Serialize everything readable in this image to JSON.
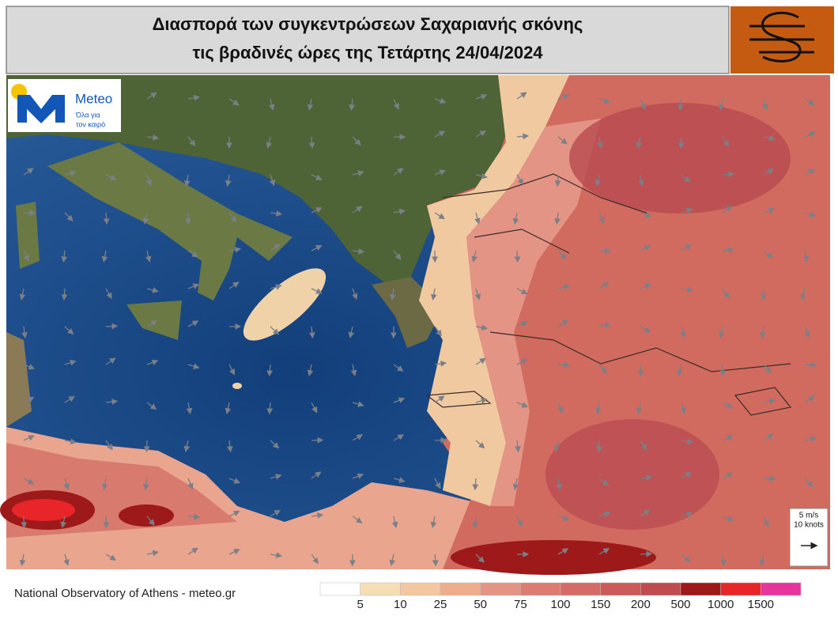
{
  "header": {
    "title_lines": [
      "Διασπορά των συγκεντρώσεων Σαχαριανής σκόνης",
      "τις βραδινές ώρες της Τετάρτης 24/04/2024"
    ]
  },
  "logo": {
    "name": "Meteo",
    "tagline_lines": [
      "Όλα για",
      "τον καιρό"
    ]
  },
  "wind_scale": {
    "lines": [
      "5 m/s",
      "10 knots"
    ]
  },
  "footer": {
    "credit": "National Observatory of Athens - meteo.gr"
  },
  "legend": {
    "ticks": [
      5,
      10,
      25,
      50,
      75,
      100,
      150,
      200,
      500,
      1000,
      1500
    ],
    "colors": [
      "#ffffff",
      "#f5deb3",
      "#f3c7a0",
      "#eeae8e",
      "#e39484",
      "#dc7b72",
      "#d56a66",
      "#cc5a5a",
      "#c04c50",
      "#9e1a1a",
      "#e8262a",
      "#e8359e"
    ]
  }
}
